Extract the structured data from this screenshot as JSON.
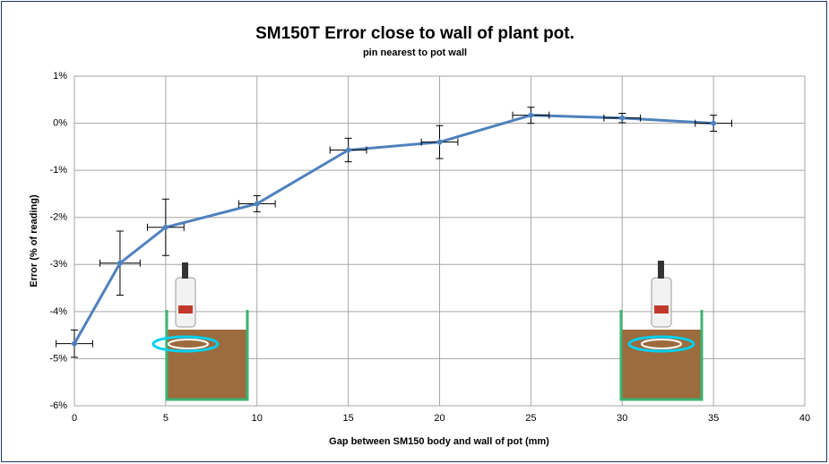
{
  "chart_data": {
    "type": "line",
    "title": "SM150T  Error close to wall of plant pot.",
    "subtitle": "pin nearest to pot wall",
    "x_label": "Gap between SM150 body and wall of pot (mm)",
    "y_label": "Error (% of reading)",
    "series": [
      {
        "name": "pin nearest to pot wall",
        "color": "#4f81bd",
        "x": [
          0,
          2.5,
          5,
          10,
          15,
          20,
          25,
          30,
          35
        ],
        "values": [
          -4.68,
          -2.97,
          -2.21,
          -1.71,
          -0.57,
          -0.4,
          0.17,
          0.11,
          0.0
        ],
        "y_error": [
          0.29,
          0.68,
          0.6,
          0.17,
          0.25,
          0.35,
          0.17,
          0.1,
          0.17
        ],
        "x_error": [
          1,
          1.1,
          1,
          1,
          1,
          1,
          1,
          1,
          1
        ]
      }
    ],
    "xlim": [
      0,
      40
    ],
    "xticks": [
      0,
      5,
      10,
      15,
      20,
      25,
      30,
      35,
      40
    ],
    "ylim": [
      -6,
      1
    ],
    "yticks": [
      {
        "value": -6,
        "label": "-6%"
      },
      {
        "value": -5,
        "label": "-5%"
      },
      {
        "value": -4,
        "label": "-4%"
      },
      {
        "value": -3,
        "label": "-3%"
      },
      {
        "value": -2,
        "label": "-2%"
      },
      {
        "value": -1,
        "label": "-1%"
      },
      {
        "value": 0,
        "label": "0%"
      },
      {
        "value": 1,
        "label": "1%"
      }
    ],
    "grid": true
  }
}
